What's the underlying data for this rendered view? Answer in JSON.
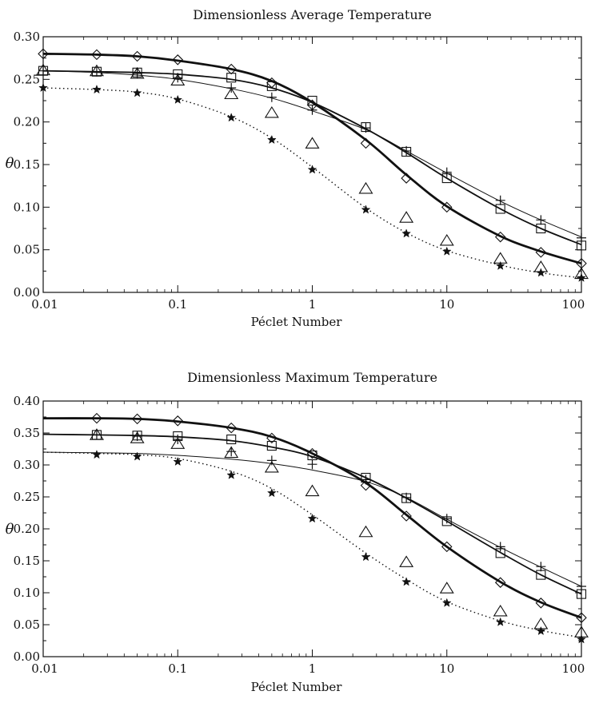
{
  "chart_data": [
    {
      "type": "scatter",
      "title": "Dimensionless Average Temperature",
      "xlabel": "Péclet Number",
      "ylabel": "θ",
      "xscale": "log",
      "xlim": [
        0.01,
        100
      ],
      "ylim": [
        0.0,
        0.3
      ],
      "xticks": [
        "0.01",
        "0.1",
        "1",
        "10",
        "100"
      ],
      "yticks": [
        "0.00",
        "0.05",
        "0.10",
        "0.15",
        "0.20",
        "0.25",
        "0.30"
      ],
      "grid": false,
      "x": [
        0.01,
        0.025,
        0.05,
        0.1,
        0.25,
        0.5,
        1,
        2.5,
        5,
        10,
        25,
        50,
        100
      ],
      "series": [
        {
          "marker": "diamond",
          "line": "thick-solid",
          "values": [
            0.28,
            0.279,
            0.277,
            0.273,
            0.262,
            0.246,
            0.22,
            0.175,
            0.134,
            0.1,
            0.065,
            0.047,
            0.034
          ],
          "curve": [
            0.28,
            0.279,
            0.277,
            0.272,
            0.262,
            0.248,
            0.223,
            0.179,
            0.138,
            0.101,
            0.066,
            0.048,
            0.034
          ]
        },
        {
          "marker": "square",
          "line": "medium-solid",
          "values": [
            0.26,
            0.259,
            0.258,
            0.256,
            0.252,
            0.242,
            0.225,
            0.194,
            0.165,
            0.134,
            0.098,
            0.075,
            0.055
          ],
          "curve": [
            0.26,
            0.259,
            0.258,
            0.256,
            0.25,
            0.24,
            0.223,
            0.192,
            0.164,
            0.134,
            0.098,
            0.075,
            0.056
          ]
        },
        {
          "marker": "plus",
          "line": "thin-solid",
          "values": [
            0.26,
            0.259,
            0.257,
            0.252,
            0.24,
            0.229,
            0.214,
            0.193,
            0.166,
            0.141,
            0.108,
            0.085,
            0.064
          ],
          "curve": [
            0.26,
            0.258,
            0.255,
            0.25,
            0.239,
            0.228,
            0.213,
            0.191,
            0.166,
            0.14,
            0.107,
            0.085,
            0.065
          ]
        },
        {
          "marker": "triangle",
          "line": "none",
          "values": [
            0.26,
            0.259,
            0.256,
            0.248,
            0.232,
            0.21,
            0.174,
            0.121,
            0.087,
            0.06,
            0.039,
            0.029,
            0.021
          ]
        },
        {
          "marker": "star",
          "line": "dotted",
          "values": [
            0.24,
            0.238,
            0.234,
            0.226,
            0.205,
            0.179,
            0.144,
            0.097,
            0.069,
            0.048,
            0.031,
            0.023,
            0.017
          ],
          "curve": [
            0.24,
            0.238,
            0.235,
            0.227,
            0.206,
            0.181,
            0.147,
            0.099,
            0.07,
            0.049,
            0.032,
            0.023,
            0.017
          ]
        }
      ]
    },
    {
      "type": "scatter",
      "title": "Dimensionless Maximum Temperature",
      "xlabel": "Péclet Number",
      "ylabel": "θ",
      "xscale": "log",
      "xlim": [
        0.01,
        100
      ],
      "ylim": [
        0.0,
        0.4
      ],
      "xticks": [
        "0.01",
        "0.1",
        "1",
        "10",
        "100"
      ],
      "yticks": [
        "0.00",
        "0.05",
        "0.10",
        "0.15",
        "0.20",
        "0.25",
        "0.30",
        "0.35",
        "0.40"
      ],
      "grid": false,
      "x": [
        0.025,
        0.05,
        0.1,
        0.25,
        0.5,
        1,
        2.5,
        5,
        10,
        25,
        50,
        100
      ],
      "curve_x": [
        0.01,
        0.025,
        0.05,
        0.1,
        0.25,
        0.5,
        1,
        2.5,
        5,
        10,
        25,
        50,
        100
      ],
      "series": [
        {
          "marker": "diamond",
          "line": "thick-solid",
          "values": [
            0.373,
            0.372,
            0.369,
            0.358,
            0.342,
            0.318,
            0.268,
            0.22,
            0.172,
            0.116,
            0.084,
            0.061
          ],
          "curve": [
            0.373,
            0.373,
            0.372,
            0.368,
            0.358,
            0.344,
            0.318,
            0.272,
            0.222,
            0.172,
            0.117,
            0.085,
            0.061
          ]
        },
        {
          "marker": "square",
          "line": "medium-solid",
          "values": [
            0.347,
            0.346,
            0.345,
            0.34,
            0.33,
            0.315,
            0.28,
            0.248,
            0.212,
            0.162,
            0.128,
            0.098
          ],
          "curve": [
            0.348,
            0.347,
            0.346,
            0.344,
            0.338,
            0.328,
            0.313,
            0.28,
            0.248,
            0.212,
            0.163,
            0.128,
            0.098
          ]
        },
        {
          "marker": "plus",
          "line": "thin-solid",
          "values": [
            0.347,
            0.345,
            0.34,
            0.321,
            0.307,
            0.301,
            0.277,
            0.249,
            0.216,
            0.172,
            0.141,
            0.11
          ],
          "curve": [
            0.32,
            0.319,
            0.318,
            0.315,
            0.309,
            0.302,
            0.292,
            0.274,
            0.249,
            0.215,
            0.171,
            0.14,
            0.11
          ]
        },
        {
          "marker": "triangle",
          "line": "none",
          "values": [
            0.346,
            0.341,
            0.332,
            0.318,
            0.295,
            0.258,
            0.194,
            0.147,
            0.106,
            0.07,
            0.05,
            0.037
          ]
        },
        {
          "marker": "star",
          "line": "dotted",
          "values": [
            0.316,
            0.313,
            0.305,
            0.284,
            0.256,
            0.216,
            0.156,
            0.117,
            0.084,
            0.054,
            0.04,
            0.027
          ],
          "curve": [
            0.32,
            0.318,
            0.316,
            0.31,
            0.29,
            0.263,
            0.222,
            0.162,
            0.121,
            0.086,
            0.056,
            0.041,
            0.03
          ]
        }
      ]
    }
  ]
}
